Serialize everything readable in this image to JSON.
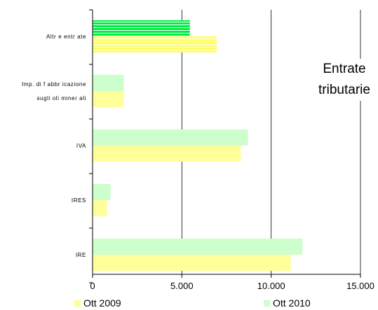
{
  "chart_data": {
    "type": "bar",
    "orientation": "horizontal",
    "categories": [
      [
        "Altr e entr ate"
      ],
      [
        "Imp. di f abbr icazione",
        "sugli oli miner ali"
      ],
      [
        "IVA"
      ],
      [
        "IRES"
      ],
      [
        "IRE"
      ]
    ],
    "series": [
      {
        "name": "Ott 2010",
        "values": [
          5450,
          1750,
          8700,
          1000,
          11750
        ]
      },
      {
        "name": "Ott 2009",
        "values": [
          6950,
          1750,
          8300,
          800,
          11100
        ]
      }
    ],
    "xlim": [
      0,
      15000
    ],
    "xticks": [
      0,
      5000,
      10000,
      15000
    ],
    "xtick_labels": [
      "0",
      "5.000",
      "10.000",
      "15.000"
    ],
    "grid": "vertical",
    "legend": "bottom",
    "colors": {
      "ott2009": "#ffff99",
      "ott2010": "#ccffcc",
      "ott2009_highlight": "#ffff66",
      "ott2010_highlight": "#00ee44",
      "stripe": "#ffffff",
      "grid": "#000000"
    },
    "highlighted_category": 0,
    "annotation": "Entrate tributarie",
    "annotation_lines": [
      "Entrate",
      "tributarie"
    ]
  }
}
